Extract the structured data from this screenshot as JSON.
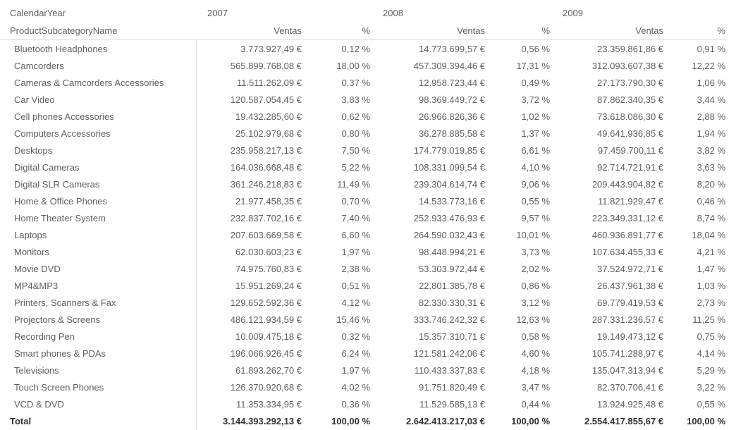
{
  "colors": {
    "text": "#605E5C",
    "total_text": "#323130",
    "gridline": "#DBDBDB",
    "background": "#FFFFFF"
  },
  "chart_data": {
    "type": "table",
    "column_dimension": "CalendarYear",
    "row_dimension": "ProductSubcategoryName",
    "currency": "EUR",
    "year_groups": [
      {
        "year": "2007",
        "columns": [
          "Ventas",
          "%"
        ]
      },
      {
        "year": "2008",
        "columns": [
          "Ventas",
          "%"
        ]
      },
      {
        "year": "2009",
        "columns": [
          "Ventas",
          "%"
        ]
      }
    ],
    "rows": [
      {
        "label": "Bluetooth Headphones",
        "values": [
          "3.773.927,49 €",
          "0,12 %",
          "14.773.699,57 €",
          "0,56 %",
          "23.359.861,86 €",
          "0,91 %"
        ]
      },
      {
        "label": "Camcorders",
        "values": [
          "565.899.768,08 €",
          "18,00 %",
          "457.309.394,46 €",
          "17,31 %",
          "312.093.607,38 €",
          "12,22 %"
        ]
      },
      {
        "label": "Cameras & Camcorders Accessories",
        "values": [
          "11.511.262,09 €",
          "0,37 %",
          "12.958.723,44 €",
          "0,49 %",
          "27.173.790,30 €",
          "1,06 %"
        ]
      },
      {
        "label": "Car Video",
        "values": [
          "120.587.054,45 €",
          "3,83 %",
          "98.369.449,72 €",
          "3,72 %",
          "87.862.340,35 €",
          "3,44 %"
        ]
      },
      {
        "label": "Cell phones Accessories",
        "values": [
          "19.432.285,60 €",
          "0,62 %",
          "26.966.826,36 €",
          "1,02 %",
          "73.618.086,30 €",
          "2,88 %"
        ]
      },
      {
        "label": "Computers Accessories",
        "values": [
          "25.102.979,68 €",
          "0,80 %",
          "36.278.885,58 €",
          "1,37 %",
          "49.641.936,85 €",
          "1,94 %"
        ]
      },
      {
        "label": "Desktops",
        "values": [
          "235.958.217,13 €",
          "7,50 %",
          "174.779.019,85 €",
          "6,61 %",
          "97.459.700,11 €",
          "3,82 %"
        ]
      },
      {
        "label": "Digital Cameras",
        "values": [
          "164.036.668,48 €",
          "5,22 %",
          "108.331.099,54 €",
          "4,10 %",
          "92.714.721,91 €",
          "3,63 %"
        ]
      },
      {
        "label": "Digital SLR Cameras",
        "values": [
          "361.246.218,83 €",
          "11,49 %",
          "239.304.614,74 €",
          "9,06 %",
          "209.443.904,82 €",
          "8,20 %"
        ]
      },
      {
        "label": "Home & Office Phones",
        "values": [
          "21.977.458,35 €",
          "0,70 %",
          "14.533.773,16 €",
          "0,55 %",
          "11.821.929,47 €",
          "0,46 %"
        ]
      },
      {
        "label": "Home Theater System",
        "values": [
          "232.837.702,16 €",
          "7,40 %",
          "252.933.476,93 €",
          "9,57 %",
          "223.349.331,12 €",
          "8,74 %"
        ]
      },
      {
        "label": "Laptops",
        "values": [
          "207.603.669,58 €",
          "6,60 %",
          "264.590.032,43 €",
          "10,01 %",
          "460.936.891,77 €",
          "18,04 %"
        ]
      },
      {
        "label": "Monitors",
        "values": [
          "62.030.603,23 €",
          "1,97 %",
          "98.448.994,21 €",
          "3,73 %",
          "107.634.455,33 €",
          "4,21 %"
        ]
      },
      {
        "label": "Movie DVD",
        "values": [
          "74.975.760,83 €",
          "2,38 %",
          "53.303.972,44 €",
          "2,02 %",
          "37.524.972,71 €",
          "1,47 %"
        ]
      },
      {
        "label": "MP4&MP3",
        "values": [
          "15.951.269,24 €",
          "0,51 %",
          "22.801.385,78 €",
          "0,86 %",
          "26.437.961,38 €",
          "1,03 %"
        ]
      },
      {
        "label": "Printers, Scanners & Fax",
        "values": [
          "129.652.592,36 €",
          "4,12 %",
          "82.330.330,31 €",
          "3,12 %",
          "69.779.419,53 €",
          "2,73 %"
        ]
      },
      {
        "label": "Projectors & Screens",
        "values": [
          "486.121.934,59 €",
          "15,46 %",
          "333.746.242,32 €",
          "12,63 %",
          "287.331.236,57 €",
          "11,25 %"
        ]
      },
      {
        "label": "Recording Pen",
        "values": [
          "10.009.475,18 €",
          "0,32 %",
          "15.357.310,71 €",
          "0,58 %",
          "19.149.473,12 €",
          "0,75 %"
        ]
      },
      {
        "label": "Smart phones & PDAs",
        "values": [
          "196.066.926,45 €",
          "6,24 %",
          "121.581.242,06 €",
          "4,60 %",
          "105.741.288,97 €",
          "4,14 %"
        ]
      },
      {
        "label": "Televisions",
        "values": [
          "61.893.262,70 €",
          "1,97 %",
          "110.433.337,83 €",
          "4,18 %",
          "135.047.313,94 €",
          "5,29 %"
        ]
      },
      {
        "label": "Touch Screen Phones",
        "values": [
          "126.370.920,68 €",
          "4,02 %",
          "91.751.820,49 €",
          "3,47 %",
          "82.370.706,41 €",
          "3,22 %"
        ]
      },
      {
        "label": "VCD & DVD",
        "values": [
          "11.353.334,95 €",
          "0,36 %",
          "11.529.585,13 €",
          "0,44 %",
          "13.924.925,48 €",
          "0,55 %"
        ]
      }
    ],
    "total": {
      "label": "Total",
      "values": [
        "3.144.393.292,13 €",
        "100,00 %",
        "2.642.413.217,03 €",
        "100,00 %",
        "2.554.417.855,67 €",
        "100,00 %"
      ]
    }
  }
}
